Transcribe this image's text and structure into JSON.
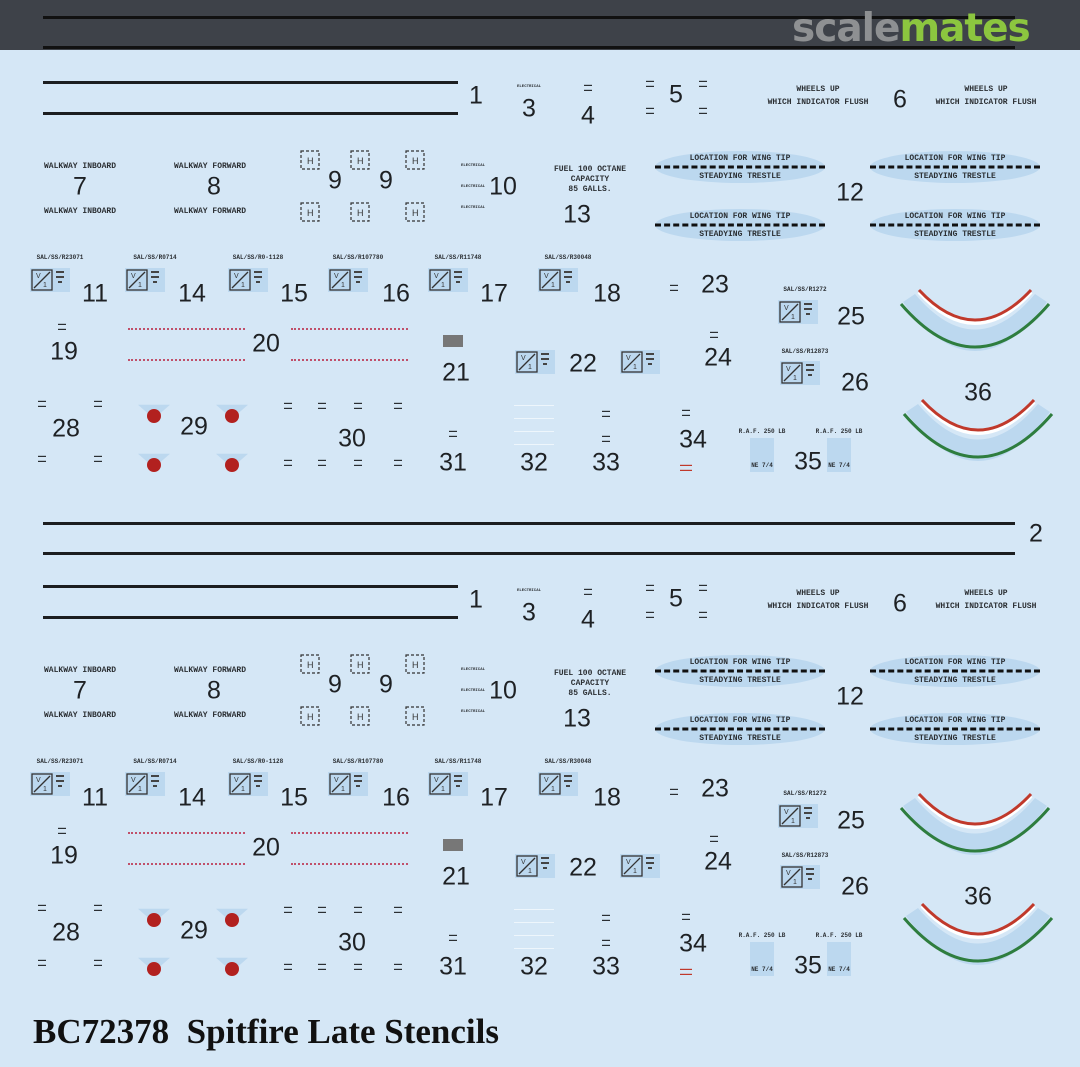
{
  "logo": {
    "part1": "scale",
    "part2": "mates"
  },
  "title": "BC72378  Spitfire Late Stencils",
  "colors": {
    "background": "#d5e7f6",
    "band": "#3e4249",
    "logo_grey": "#8e9092",
    "logo_green": "#8cc63f",
    "red": "#c0392b",
    "green": "#2e7d3e"
  },
  "numbers": {
    "n1": "1",
    "n2": "2",
    "n3": "3",
    "n4": "4",
    "n5": "5",
    "n6": "6",
    "n7": "7",
    "n8": "8",
    "n9": "9",
    "n10": "10",
    "n11": "11",
    "n12": "12",
    "n13": "13",
    "n14": "14",
    "n15": "15",
    "n16": "16",
    "n17": "17",
    "n18": "18",
    "n19": "19",
    "n20": "20",
    "n21": "21",
    "n22": "22",
    "n23": "23",
    "n24": "24",
    "n25": "25",
    "n26": "26",
    "n28": "28",
    "n29": "29",
    "n30": "30",
    "n31": "31",
    "n32": "32",
    "n33": "33",
    "n34": "34",
    "n35": "35",
    "n36": "36"
  },
  "texts": {
    "walkway_inboard": "WALKWAY INBOARD",
    "walkway_forward": "WALKWAY FORWARD",
    "electrical": "ELECTRICAL",
    "wheels_up": "WHEELS UP",
    "which_indicator": "WHICH INDICATOR FLUSH",
    "wing_tip": "LOCATION FOR WING TIP",
    "trestle": "STEADYING TRESTLE",
    "fuel1": "FUEL 100 OCTANE",
    "fuel2": "CAPACITY",
    "fuel3": "85 GALLS.",
    "serials": [
      "SAL/SS/R23071",
      "SAL/SS/R0714",
      "SAL/SS/R0-1128",
      "SAL/SS/R107780",
      "SAL/SS/R11748",
      "SAL/SS/R30048",
      "SAL/SS/R1272",
      "SAL/SS/R12873"
    ],
    "bomb": "R.A.F. 250 LB",
    "bomb_ne": "NE 7/4"
  }
}
